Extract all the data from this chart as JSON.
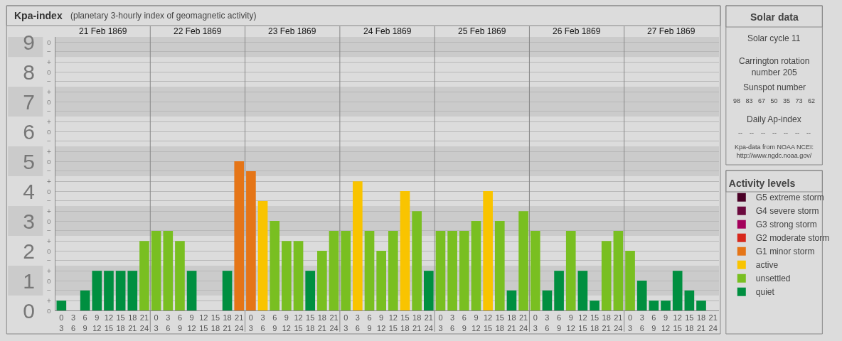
{
  "chart_data": {
    "type": "bar",
    "title": "Kpa-index",
    "subtitle": "(planetary 3-hourly index of geomagnetic activity)",
    "categories": [
      "0\n3",
      "3\n6",
      "6\n9",
      "9\n12",
      "12\n15",
      "15\n18",
      "18\n21",
      "21\n24",
      "0\n3",
      "3\n6",
      "6\n9",
      "9\n12",
      "12\n15",
      "15\n18",
      "18\n21",
      "21\n24",
      "0\n3",
      "3\n6",
      "6\n9",
      "9\n12",
      "12\n15",
      "15\n18",
      "18\n21",
      "21\n24",
      "0\n3",
      "3\n6",
      "6\n9",
      "9\n12",
      "12\n15",
      "15\n18",
      "18\n21",
      "21\n24",
      "0\n3",
      "3\n6",
      "6\n9",
      "9\n12",
      "12\n15",
      "15\n18",
      "18\n21",
      "21\n24",
      "0\n3",
      "3\n6",
      "6\n9",
      "9\n12",
      "12\n15",
      "15\n18",
      "18\n21",
      "21\n24",
      "0\n3",
      "3\n6",
      "6\n9",
      "9\n12",
      "12\n15",
      "15\n18",
      "18\n21",
      "21\n24"
    ],
    "series": [
      {
        "name": "G5 extreme storm",
        "color": "#4a0026",
        "values": [
          null,
          null,
          null,
          null,
          null,
          null,
          null,
          null,
          null,
          null,
          null,
          null,
          null,
          null,
          null,
          null,
          null,
          null,
          null,
          null,
          null,
          null,
          null,
          null,
          null,
          null,
          null,
          null,
          null,
          null,
          null,
          null,
          null,
          null,
          null,
          null,
          null,
          null,
          null,
          null,
          null,
          null,
          null,
          null,
          null,
          null,
          null,
          null,
          null,
          null,
          null,
          null,
          null,
          null,
          null,
          null
        ]
      },
      {
        "name": "G4 severe storm",
        "color": "#6b0a3e",
        "values": [
          null,
          null,
          null,
          null,
          null,
          null,
          null,
          null,
          null,
          null,
          null,
          null,
          null,
          null,
          null,
          null,
          null,
          null,
          null,
          null,
          null,
          null,
          null,
          null,
          null,
          null,
          null,
          null,
          null,
          null,
          null,
          null,
          null,
          null,
          null,
          null,
          null,
          null,
          null,
          null,
          null,
          null,
          null,
          null,
          null,
          null,
          null,
          null,
          null,
          null,
          null,
          null,
          null,
          null,
          null,
          null
        ]
      },
      {
        "name": "G3 strong storm",
        "color": "#a3005b",
        "values": [
          null,
          null,
          null,
          null,
          null,
          null,
          null,
          null,
          null,
          null,
          null,
          null,
          null,
          null,
          null,
          null,
          null,
          null,
          null,
          null,
          null,
          null,
          null,
          null,
          null,
          null,
          null,
          null,
          null,
          null,
          null,
          null,
          null,
          null,
          null,
          null,
          null,
          null,
          null,
          null,
          null,
          null,
          null,
          null,
          null,
          null,
          null,
          null,
          null,
          null,
          null,
          null,
          null,
          null,
          null,
          null
        ]
      },
      {
        "name": "G2 moderate storm",
        "color": "#d7281c",
        "values": [
          null,
          null,
          null,
          null,
          null,
          null,
          null,
          null,
          null,
          null,
          null,
          null,
          null,
          null,
          null,
          null,
          null,
          null,
          null,
          null,
          null,
          null,
          null,
          null,
          null,
          null,
          null,
          null,
          null,
          null,
          null,
          null,
          null,
          null,
          null,
          null,
          null,
          null,
          null,
          null,
          null,
          null,
          null,
          null,
          null,
          null,
          null,
          null,
          null,
          null,
          null,
          null,
          null,
          null,
          null,
          null
        ]
      },
      {
        "name": "G1 minor storm",
        "color": "#e57517",
        "values": [
          null,
          null,
          null,
          null,
          null,
          null,
          null,
          null,
          null,
          null,
          null,
          null,
          null,
          null,
          null,
          5,
          4.67,
          null,
          null,
          null,
          null,
          null,
          null,
          null,
          null,
          null,
          null,
          null,
          null,
          null,
          null,
          null,
          null,
          null,
          null,
          null,
          null,
          null,
          null,
          null,
          null,
          null,
          null,
          null,
          null,
          null,
          null,
          null,
          null,
          null,
          null,
          null,
          null,
          null,
          null,
          null
        ]
      },
      {
        "name": "active",
        "color": "#f9c400",
        "values": [
          null,
          null,
          null,
          null,
          null,
          null,
          null,
          null,
          null,
          null,
          null,
          null,
          null,
          null,
          null,
          null,
          null,
          3.67,
          null,
          null,
          null,
          null,
          null,
          null,
          null,
          4.33,
          null,
          null,
          null,
          4,
          null,
          null,
          null,
          null,
          null,
          null,
          4,
          null,
          null,
          null,
          null,
          null,
          null,
          null,
          null,
          null,
          null,
          null,
          null,
          null,
          null,
          null,
          null,
          null,
          null,
          null
        ]
      },
      {
        "name": "unsettled",
        "color": "#79bf21",
        "values": [
          null,
          null,
          null,
          null,
          null,
          null,
          null,
          2.33,
          2.67,
          2.67,
          2.33,
          null,
          null,
          null,
          null,
          null,
          null,
          null,
          3,
          2.33,
          2.33,
          null,
          2,
          2.67,
          2.67,
          null,
          2.67,
          2,
          2.67,
          null,
          3.33,
          null,
          2.67,
          2.67,
          2.67,
          3,
          null,
          3,
          null,
          3.33,
          2.67,
          null,
          null,
          2.67,
          null,
          null,
          2.33,
          2.67,
          2,
          null,
          null,
          null,
          null,
          null,
          null,
          null
        ]
      },
      {
        "name": "quiet",
        "color": "#008f40",
        "values": [
          0.33,
          0,
          0.67,
          1.33,
          1.33,
          1.33,
          1.33,
          null,
          null,
          null,
          null,
          1.33,
          0,
          0,
          1.33,
          null,
          null,
          null,
          null,
          null,
          null,
          1.33,
          null,
          null,
          null,
          null,
          null,
          null,
          null,
          null,
          null,
          1.33,
          null,
          null,
          null,
          null,
          null,
          null,
          0.67,
          null,
          null,
          0.67,
          1.33,
          null,
          1.33,
          0.33,
          null,
          null,
          null,
          1,
          0.33,
          0.33,
          1.33,
          0.67,
          0.33,
          0
        ]
      }
    ],
    "ylim": [
      0,
      9.17
    ],
    "yticks": [
      0,
      {
        "value": 0.33,
        "label": null
      },
      {
        "value": 0.67,
        "label": null
      },
      1,
      {
        "value": 1.33,
        "label": null
      },
      {
        "value": 1.67,
        "label": null
      },
      2,
      {
        "value": 2.33,
        "label": null
      },
      {
        "value": 2.67,
        "label": null
      },
      3,
      {
        "value": 3.33,
        "label": null
      },
      {
        "value": 3.67,
        "label": null
      },
      4,
      {
        "value": 4.33,
        "label": null
      },
      {
        "value": 4.67,
        "label": null
      },
      5,
      {
        "value": 5.33,
        "label": null
      },
      {
        "value": 5.67,
        "label": null
      },
      6,
      {
        "value": 6.33,
        "label": null
      },
      {
        "value": 6.67,
        "label": null
      },
      7,
      {
        "value": 7.33,
        "label": null
      },
      {
        "value": 7.67,
        "label": null
      },
      8,
      {
        "value": 8.33,
        "label": null
      },
      {
        "value": 8.67,
        "label": null
      },
      9
    ],
    "bands": [
      {
        "axis": "y",
        "from": 0.5,
        "to": 1.5,
        "color": "#cbcbcb"
      },
      {
        "axis": "y",
        "from": 2.5,
        "to": 3.5,
        "color": "#cbcbcb"
      },
      {
        "axis": "y",
        "from": 4.5,
        "to": 5.5,
        "color": "#cbcbcb"
      },
      {
        "axis": "y",
        "from": 6.5,
        "to": 7.5,
        "color": "#cbcbcb"
      },
      {
        "axis": "y",
        "from": 8.5,
        "to": 9.17,
        "color": "#cbcbcb"
      }
    ],
    "grid": "y",
    "legend": "right",
    "legend_title": "Activity levels",
    "annotations": [
      "21 Feb 1869",
      "22 Feb 1869",
      "23 Feb 1869",
      "24 Feb 1869",
      "25 Feb 1869",
      "26 Feb 1869",
      "27 Feb 1869",
      "Solar data",
      "Solar cycle 11",
      "Carrington rotation\nnumber 205",
      "Sunspot number",
      "98   83   67   50   35   73   62",
      "Daily Ap-index",
      "--    --    --    --    --    --    --",
      "Kpa-data from NOAA NCEI:\nhttp://www.ngdc.noaa.gov/",
      "o",
      "+",
      "−",
      "o",
      "+",
      "−",
      "o",
      "+",
      "−",
      "o",
      "+",
      "−",
      "o",
      "+",
      "−",
      "o",
      "+",
      "−",
      "o",
      "+",
      "−",
      "o",
      "+",
      "−",
      "o",
      "+",
      "−",
      "o"
    ]
  }
}
